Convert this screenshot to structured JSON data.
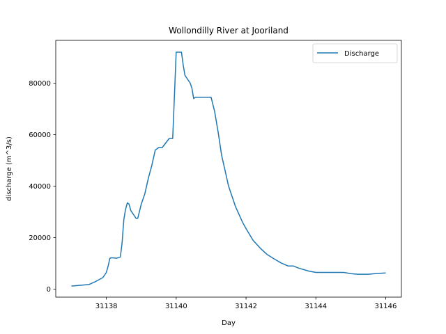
{
  "chart_data": {
    "type": "line",
    "title": "Wollondilly River at Jooriland",
    "xlabel": "Day",
    "ylabel": "discharge (m^3/s)",
    "xlim": [
      31136.55,
      31146.45
    ],
    "ylim": [
      -3100,
      96600
    ],
    "xticks": [
      31138,
      31140,
      31142,
      31144,
      31146
    ],
    "yticks": [
      0,
      20000,
      40000,
      60000,
      80000
    ],
    "grid": false,
    "legend_position": "top-right",
    "series": [
      {
        "name": "Discharge",
        "color": "#1f77b4",
        "x": [
          31137.0,
          31137.5,
          31137.7,
          31137.9,
          31138.0,
          31138.05,
          31138.1,
          31138.15,
          31138.3,
          31138.4,
          31138.45,
          31138.5,
          31138.55,
          31138.6,
          31138.65,
          31138.7,
          31138.8,
          31138.85,
          31138.9,
          31139.0,
          31139.1,
          31139.2,
          31139.3,
          31139.4,
          31139.5,
          31139.55,
          31139.6,
          31139.8,
          31139.85,
          31139.9,
          31139.95,
          31140.0,
          31140.02,
          31140.05,
          31140.15,
          31140.2,
          31140.25,
          31140.3,
          31140.4,
          31140.45,
          31140.5,
          31140.55,
          31140.6,
          31140.8,
          31141.0,
          31141.1,
          31141.2,
          31141.3,
          31141.5,
          31141.7,
          31141.9,
          31142.0,
          31142.2,
          31142.4,
          31142.6,
          31142.8,
          31143.0,
          31143.2,
          31143.35,
          31143.5,
          31143.6,
          31143.8,
          31144.0,
          31144.1,
          31144.3,
          31144.5,
          31144.8,
          31145.0,
          31145.2,
          31145.5,
          31145.7,
          31146.0
        ],
        "y": [
          1200,
          1800,
          3000,
          4500,
          6500,
          9000,
          12000,
          12200,
          12000,
          12500,
          18000,
          27000,
          31000,
          33500,
          33000,
          30500,
          28500,
          27500,
          27500,
          33000,
          37000,
          43000,
          48000,
          54000,
          55000,
          55000,
          55000,
          58500,
          58500,
          58500,
          75000,
          92000,
          92000,
          92000,
          92000,
          87000,
          83000,
          82000,
          80000,
          78000,
          74000,
          74500,
          74500,
          74500,
          74500,
          69000,
          61000,
          52000,
          40000,
          32000,
          26000,
          23500,
          19000,
          16000,
          13500,
          11800,
          10200,
          9000,
          9000,
          8200,
          7800,
          7000,
          6500,
          6500,
          6500,
          6500,
          6500,
          6000,
          5800,
          5800,
          6000,
          6300
        ]
      }
    ]
  }
}
